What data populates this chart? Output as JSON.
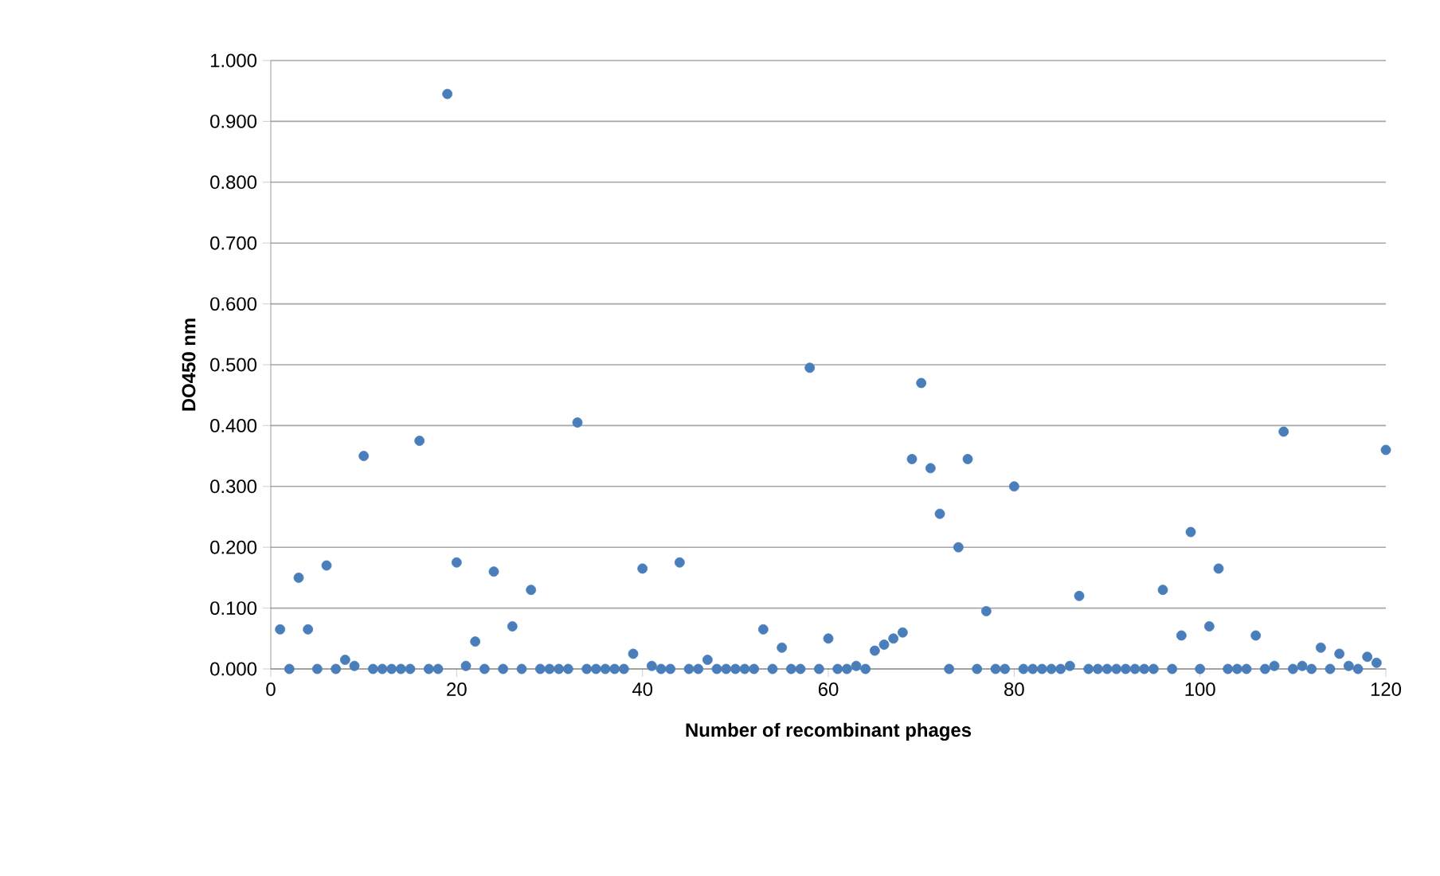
{
  "chart_data": {
    "type": "scatter",
    "xlabel": "Number of recombinant phages",
    "ylabel": "DO450 nm",
    "x": [
      1,
      2,
      3,
      4,
      5,
      6,
      7,
      8,
      9,
      10,
      11,
      12,
      13,
      14,
      15,
      16,
      17,
      18,
      19,
      20,
      21,
      22,
      23,
      24,
      25,
      26,
      27,
      28,
      29,
      30,
      31,
      32,
      33,
      34,
      35,
      36,
      37,
      38,
      39,
      40,
      41,
      42,
      43,
      44,
      45,
      46,
      47,
      48,
      49,
      50,
      51,
      52,
      53,
      54,
      55,
      56,
      57,
      58,
      59,
      60,
      61,
      62,
      63,
      64,
      65,
      66,
      67,
      68,
      69,
      70,
      71,
      72,
      73,
      74,
      75,
      76,
      77,
      78,
      79,
      80,
      81,
      82,
      83,
      84,
      85,
      86,
      87,
      88,
      89,
      90,
      91,
      92,
      93,
      94,
      95,
      96,
      97,
      98,
      99,
      100,
      101,
      102,
      103,
      104,
      105,
      106,
      107,
      108,
      109,
      110,
      111,
      112,
      113,
      114,
      115,
      116,
      117,
      118,
      119,
      120
    ],
    "values": [
      0.065,
      0,
      0.15,
      0.065,
      0,
      0.17,
      0,
      0.015,
      0.005,
      0.35,
      0,
      0,
      0,
      0,
      0,
      0.375,
      0,
      0,
      0.945,
      0.175,
      0.005,
      0.045,
      0,
      0.16,
      0,
      0.07,
      0,
      0.13,
      0,
      0,
      0,
      0,
      0.405,
      0,
      0,
      0,
      0,
      0,
      0.025,
      0.165,
      0.005,
      0,
      0,
      0.175,
      0,
      0,
      0.015,
      0,
      0,
      0,
      0,
      0,
      0.065,
      0,
      0.035,
      0,
      0,
      0.495,
      0,
      0.05,
      0,
      0,
      0.005,
      0,
      0.03,
      0.04,
      0.05,
      0.06,
      0.345,
      0.47,
      0.33,
      0.255,
      0,
      0.2,
      0.345,
      0,
      0.095,
      0,
      0,
      0.3,
      0,
      0,
      0,
      0,
      0,
      0.005,
      0.12,
      0,
      0,
      0,
      0,
      0,
      0,
      0,
      0,
      0.13,
      0,
      0.055,
      0.225,
      0,
      0.07,
      0.165,
      0,
      0,
      0,
      0.055,
      0,
      0.005,
      0.39,
      0,
      0.005,
      0,
      0.035,
      0,
      0.025,
      0.005,
      0,
      0.02,
      0.01,
      0.36
    ],
    "color": "#4a7ebb",
    "grid": "y",
    "xlim": [
      0,
      120
    ],
    "xticks": [
      0,
      20,
      40,
      60,
      80,
      100,
      120
    ],
    "ylim": [
      0,
      1
    ],
    "yticks": [
      {
        "value": 0,
        "label": "0.000"
      },
      {
        "value": 0.1,
        "label": "0.100"
      },
      {
        "value": 0.2,
        "label": "0.200"
      },
      {
        "value": 0.3,
        "label": "0.300"
      },
      {
        "value": 0.4,
        "label": "0.400"
      },
      {
        "value": 0.5,
        "label": "0.500"
      },
      {
        "value": 0.6,
        "label": "0.600"
      },
      {
        "value": 0.7,
        "label": "0.700"
      },
      {
        "value": 0.8,
        "label": "0.800"
      },
      {
        "value": 0.9,
        "label": "0.900"
      },
      {
        "value": 1,
        "label": "1.000"
      }
    ]
  }
}
